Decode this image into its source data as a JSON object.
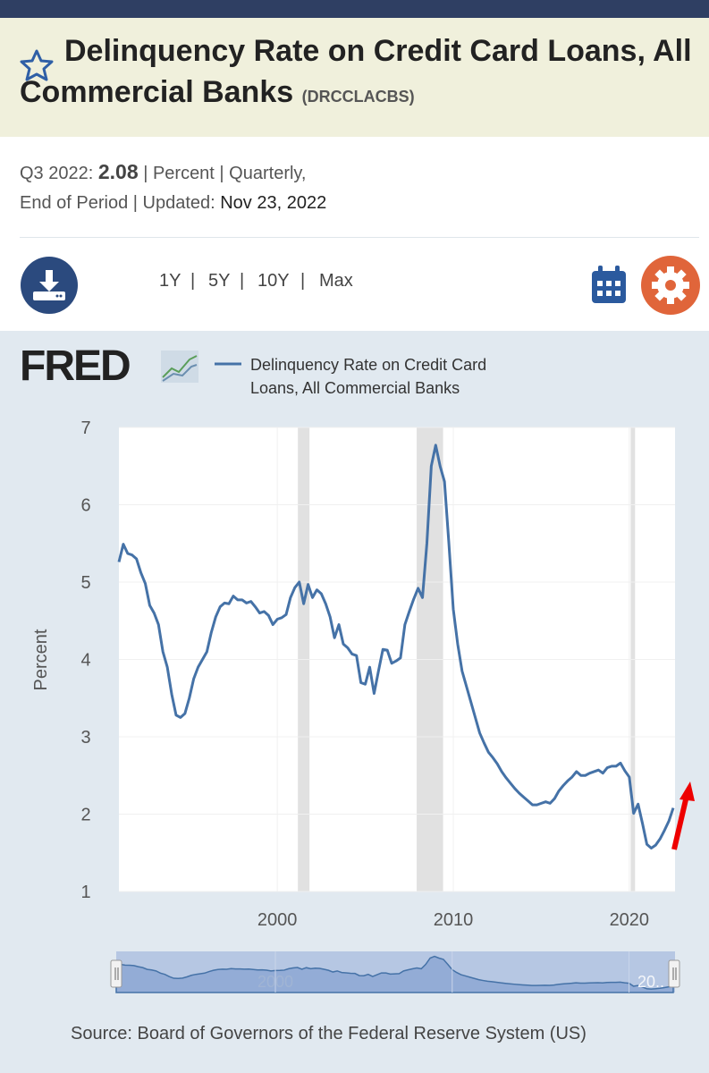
{
  "header": {
    "title": "Delinquency Rate on Credit Card Loans, All Commercial Banks",
    "series_id": "(DRCCLACBS)"
  },
  "meta": {
    "period": "Q3 2022:",
    "value": "2.08",
    "line1_rest": "| Percent | Quarterly,",
    "line2": "End of Period | Updated:",
    "updated": "Nov 23, 2022"
  },
  "ranges": [
    "1Y",
    "5Y",
    "10Y",
    "Max"
  ],
  "separator": "|",
  "logo": "FRED",
  "chart_data": {
    "type": "line",
    "x": [
      1991,
      1991.25,
      1991.5,
      1991.75,
      1992,
      1992.25,
      1992.5,
      1992.75,
      1993,
      1993.25,
      1993.5,
      1993.75,
      1994,
      1994.25,
      1994.5,
      1994.75,
      1995,
      1995.25,
      1995.5,
      1995.75,
      1996,
      1996.25,
      1996.5,
      1996.75,
      1997,
      1997.25,
      1997.5,
      1997.75,
      1998,
      1998.25,
      1998.5,
      1998.75,
      1999,
      1999.25,
      1999.5,
      1999.75,
      2000,
      2000.25,
      2000.5,
      2000.75,
      2001,
      2001.25,
      2001.5,
      2001.75,
      2002,
      2002.25,
      2002.5,
      2002.75,
      2003,
      2003.25,
      2003.5,
      2003.75,
      2004,
      2004.25,
      2004.5,
      2004.75,
      2005,
      2005.25,
      2005.5,
      2005.75,
      2006,
      2006.25,
      2006.5,
      2006.75,
      2007,
      2007.25,
      2007.5,
      2007.75,
      2008,
      2008.25,
      2008.5,
      2008.75,
      2009,
      2009.25,
      2009.5,
      2009.75,
      2010,
      2010.25,
      2010.5,
      2010.75,
      2011,
      2011.25,
      2011.5,
      2011.75,
      2012,
      2012.25,
      2012.5,
      2012.75,
      2013,
      2013.25,
      2013.5,
      2013.75,
      2014,
      2014.25,
      2014.5,
      2014.75,
      2015,
      2015.25,
      2015.5,
      2015.75,
      2016,
      2016.25,
      2016.5,
      2016.75,
      2017,
      2017.25,
      2017.5,
      2017.75,
      2018,
      2018.25,
      2018.5,
      2018.75,
      2019,
      2019.25,
      2019.5,
      2019.75,
      2020,
      2020.25,
      2020.5,
      2020.75,
      2021,
      2021.25,
      2021.5,
      2021.75,
      2022,
      2022.25,
      2022.5
    ],
    "series": [
      {
        "name": "Delinquency Rate on Credit Card Loans, All Commercial Banks",
        "color": "#4572a7",
        "values": [
          5.26,
          5.49,
          5.37,
          5.35,
          5.3,
          5.12,
          4.98,
          4.7,
          4.6,
          4.45,
          4.1,
          3.9,
          3.55,
          3.28,
          3.25,
          3.3,
          3.5,
          3.75,
          3.9,
          4.0,
          4.1,
          4.35,
          4.55,
          4.68,
          4.73,
          4.72,
          4.82,
          4.77,
          4.77,
          4.73,
          4.75,
          4.68,
          4.6,
          4.62,
          4.57,
          4.45,
          4.52,
          4.54,
          4.58,
          4.8,
          4.93,
          5.0,
          4.72,
          4.97,
          4.8,
          4.9,
          4.85,
          4.72,
          4.55,
          4.28,
          4.45,
          4.2,
          4.15,
          4.07,
          4.05,
          3.7,
          3.68,
          3.9,
          3.56,
          3.85,
          4.13,
          4.12,
          3.95,
          3.98,
          4.02,
          4.45,
          4.62,
          4.78,
          4.92,
          4.8,
          5.5,
          6.5,
          6.77,
          6.5,
          6.3,
          5.5,
          4.65,
          4.2,
          3.85,
          3.65,
          3.45,
          3.25,
          3.05,
          2.92,
          2.8,
          2.73,
          2.65,
          2.55,
          2.47,
          2.4,
          2.33,
          2.27,
          2.22,
          2.17,
          2.12,
          2.12,
          2.14,
          2.16,
          2.14,
          2.2,
          2.3,
          2.37,
          2.43,
          2.48,
          2.55,
          2.5,
          2.5,
          2.53,
          2.55,
          2.57,
          2.53,
          2.6,
          2.62,
          2.62,
          2.66,
          2.56,
          2.48,
          2.01,
          2.13,
          1.88,
          1.61,
          1.56,
          1.6,
          1.68,
          1.79,
          1.91,
          2.08
        ]
      }
    ],
    "xlim": [
      1991,
      2022.6
    ],
    "xticks": [
      2000,
      2010,
      2020
    ],
    "ylim": [
      1,
      7
    ],
    "yticks": [
      1,
      2,
      3,
      4,
      5,
      6,
      7
    ],
    "ylabel": "Percent",
    "grid": true,
    "recessions": [
      [
        2001.17,
        2001.83
      ],
      [
        2007.92,
        2009.42
      ],
      [
        2020.08,
        2020.33
      ]
    ]
  },
  "navigator": {
    "labels": [
      "2000",
      "20.."
    ]
  },
  "source": "Source: Board of Governors of the Federal Reserve System (US)"
}
